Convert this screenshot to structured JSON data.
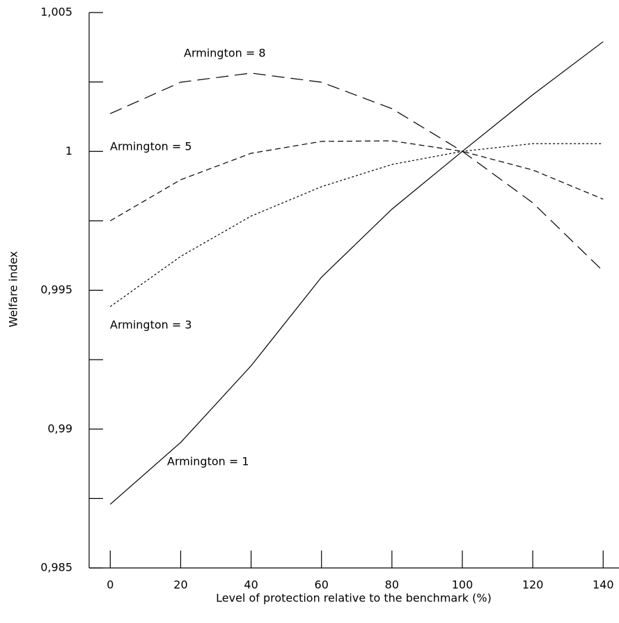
{
  "chart_data": {
    "type": "line",
    "xlabel": "Level of protection relative to the benchmark (%)",
    "ylabel": "Welfare index",
    "x": [
      0,
      20,
      40,
      60,
      80,
      100,
      120,
      140
    ],
    "xlim": [
      -6,
      144.5
    ],
    "xticks": [
      0,
      20,
      40,
      60,
      80,
      100,
      120,
      140
    ],
    "ylim": [
      0.985,
      1.005
    ],
    "yticks": [
      {
        "value": 0.985,
        "label": "0,985"
      },
      {
        "value": 0.99,
        "label": "0,99"
      },
      {
        "value": 0.995,
        "label": "0,995"
      },
      1,
      {
        "value": 1.005,
        "label": "1,005"
      }
    ],
    "yminor_ticks": [
      0.9875,
      0.9925,
      0.9975,
      1.0025
    ],
    "series": [
      {
        "name": "Armington = 1",
        "color": "#000000",
        "line_style": "solid",
        "values": [
          0.98729,
          0.98952,
          0.99228,
          0.99547,
          0.99792,
          1.0,
          1.00204,
          1.00395
        ]
      },
      {
        "name": "Armington = 3",
        "color": "#000000",
        "line_style": "dotted",
        "values": [
          0.99441,
          0.99622,
          0.99767,
          0.99873,
          0.99953,
          1.0,
          1.00028,
          1.00028
        ]
      },
      {
        "name": "Armington = 5",
        "color": "#000000",
        "line_style": "dashed",
        "values": [
          0.9975,
          0.99898,
          0.99993,
          1.00036,
          1.00038,
          1.0,
          0.99933,
          0.99828
        ]
      },
      {
        "name": "Armington = 8",
        "color": "#000000",
        "line_style": "longdash",
        "values": [
          1.00136,
          1.00249,
          1.00282,
          1.00249,
          1.00154,
          1.0,
          0.99815,
          0.99569
        ]
      }
    ]
  }
}
